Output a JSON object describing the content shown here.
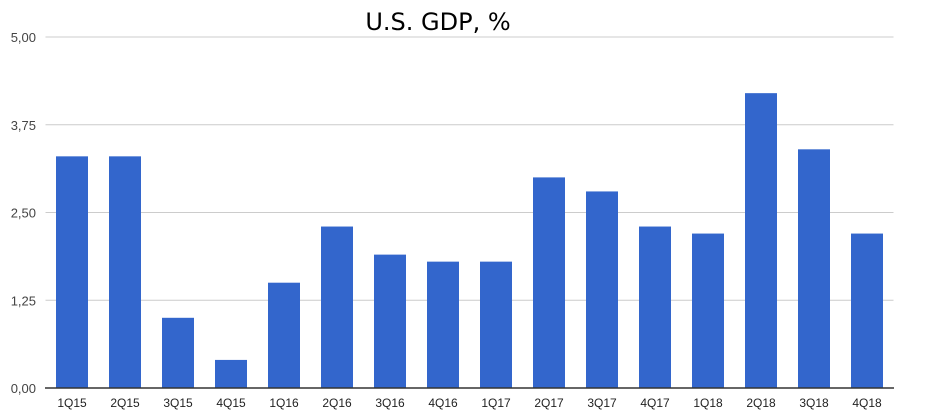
{
  "chart_data": {
    "type": "bar",
    "title": "U.S. GDP, %",
    "xlabel": "",
    "ylabel": "",
    "categories": [
      "1Q15",
      "2Q15",
      "3Q15",
      "4Q15",
      "1Q16",
      "2Q16",
      "3Q16",
      "4Q16",
      "1Q17",
      "2Q17",
      "3Q17",
      "4Q17",
      "1Q18",
      "2Q18",
      "3Q18",
      "4Q18"
    ],
    "values": [
      3.3,
      3.3,
      1.0,
      0.4,
      1.5,
      2.3,
      1.9,
      1.8,
      1.8,
      3.0,
      2.8,
      2.3,
      2.2,
      4.2,
      3.4,
      2.2
    ],
    "ylim": [
      0,
      5
    ],
    "yticks": [
      0,
      1.25,
      2.5,
      3.75,
      5
    ],
    "ytick_labels": [
      "0,00",
      "1,25",
      "2,50",
      "3,75",
      "5,00"
    ],
    "grid": true,
    "legend": "none",
    "bar_color": "#3366cc"
  }
}
